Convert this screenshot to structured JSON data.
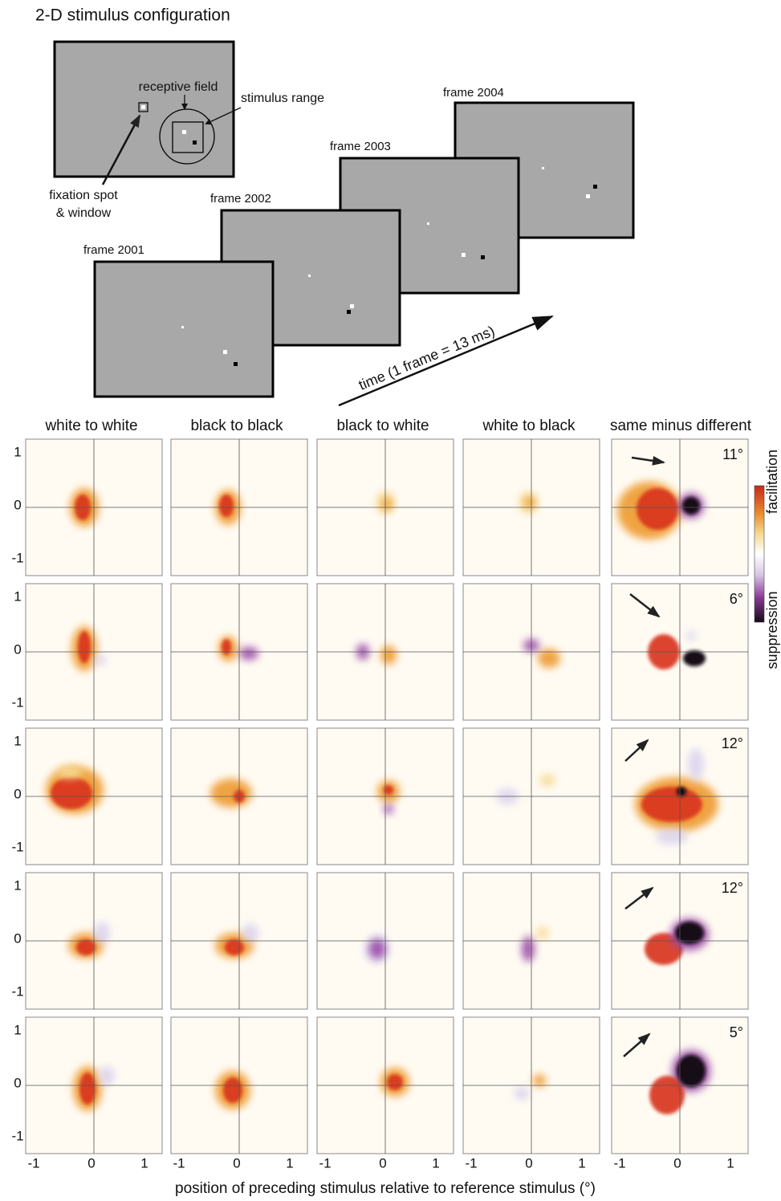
{
  "title": "2-D stimulus configuration",
  "config": {
    "receptive_field": "receptive field",
    "stimulus_range": "stimulus range",
    "fixation": [
      "fixation spot",
      "& window"
    ]
  },
  "frames": [
    "frame 2001",
    "frame 2002",
    "frame 2003",
    "frame 2004"
  ],
  "time_label": "time (1 frame = 13 ms)",
  "columns": [
    "white to white",
    "black to black",
    "black to white",
    "white to black",
    "same minus different"
  ],
  "row_angles": [
    "11°",
    "6°",
    "12°",
    "12°",
    "5°"
  ],
  "yticks": [
    "1",
    "0",
    "-1"
  ],
  "xticks": [
    "-1",
    "0",
    "1"
  ],
  "colorbar": {
    "top": "facilitation",
    "bottom": "suppression"
  },
  "x_axis_label": "position of preceding stimulus relative to reference stimulus (°)"
}
